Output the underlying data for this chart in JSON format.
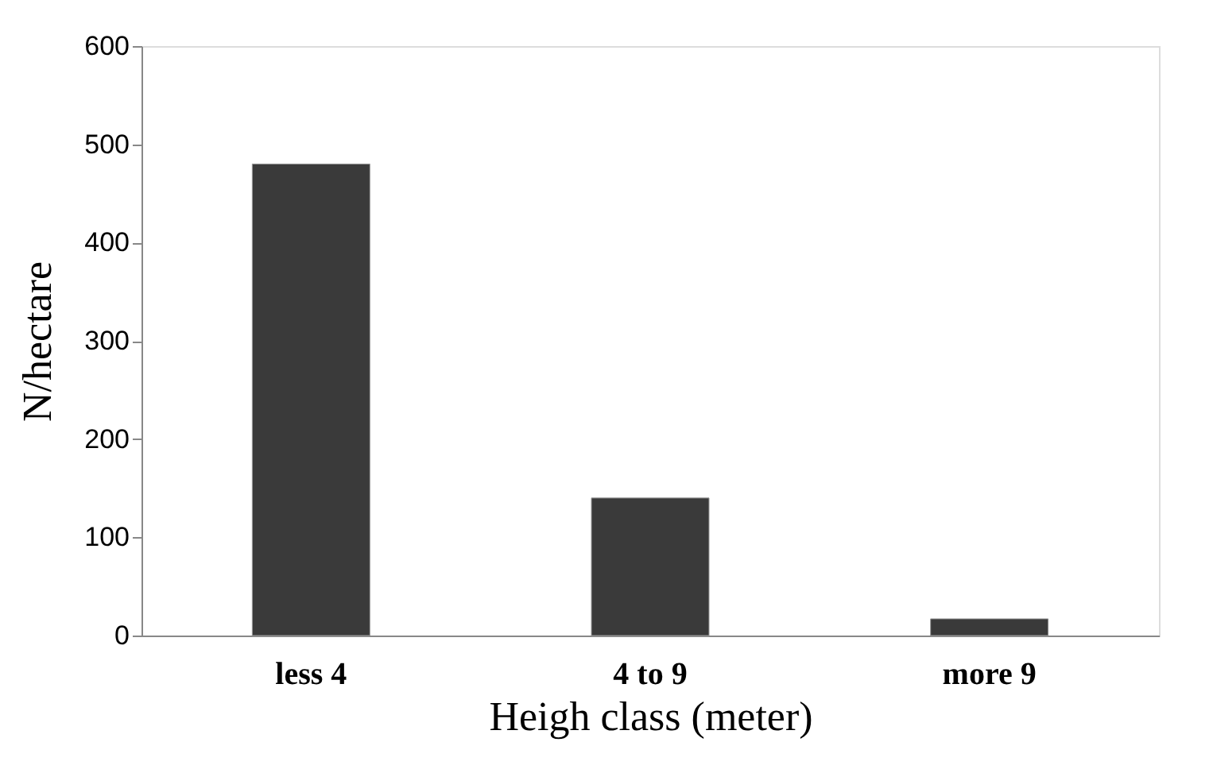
{
  "chart_data": {
    "type": "bar",
    "xlabel": "Heigh class (meter)",
    "ylabel": "N/hectare",
    "categories": [
      "less 4",
      "4 to 9",
      "more 9"
    ],
    "values": [
      480,
      140,
      17
    ],
    "color": "#3a3a3a",
    "ylim": [
      0,
      600
    ],
    "yticks": [
      0,
      100,
      200,
      300,
      400,
      500,
      600
    ],
    "grid": false
  }
}
